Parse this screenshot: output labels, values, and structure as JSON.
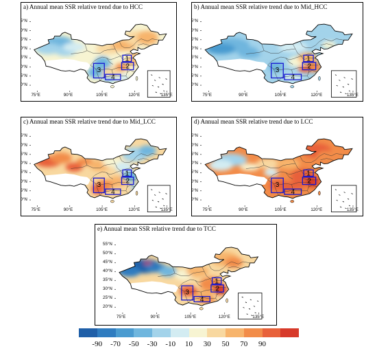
{
  "panels": [
    {
      "id": "a",
      "title": "a) Annual mean SSR relative trend due to HCC",
      "palette": "hcc"
    },
    {
      "id": "b",
      "title": "b) Annual mean SSR relative trend due to Mid_HCC",
      "palette": "mid_hcc"
    },
    {
      "id": "c",
      "title": "c) Annual mean SSR relative trend due to Mid_LCC",
      "palette": "mid_lcc"
    },
    {
      "id": "d",
      "title": "d) Annual mean SSR relative trend due to LCC",
      "palette": "lcc"
    },
    {
      "id": "e",
      "title": "e) Annual mean SSR relative trend due to TCC",
      "palette": "tcc"
    }
  ],
  "axes": {
    "lon_ticks": [
      "75°E",
      "90°E",
      "105°E",
      "120°E",
      "135°E"
    ],
    "lat_ticks": [
      "55°N",
      "50°N",
      "45°N",
      "40°N",
      "35°N",
      "30°N",
      "25°N",
      "20°N"
    ]
  },
  "region_labels": [
    "1",
    "2",
    "3",
    "4"
  ],
  "colorbar": {
    "labels": [
      "-90",
      "-70",
      "-50",
      "-30",
      "-10",
      "10",
      "30",
      "50",
      "70",
      "90"
    ],
    "colors": [
      "#1f5fa8",
      "#2f7cc0",
      "#4a9bd0",
      "#6fb6de",
      "#a3d3ea",
      "#d3ecf2",
      "#f7f4d2",
      "#f8d8a0",
      "#f7b46c",
      "#f28c49",
      "#e8613a",
      "#d73a2a"
    ]
  }
}
